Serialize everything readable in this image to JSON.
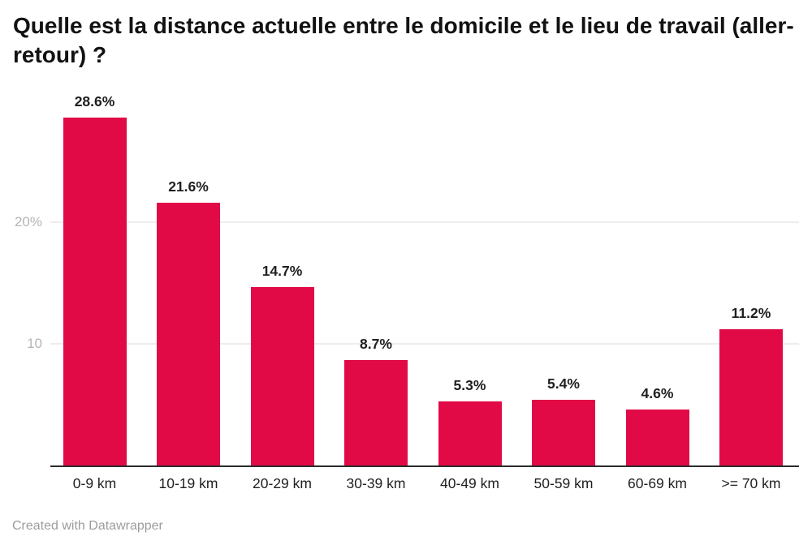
{
  "header": {
    "title": "Quelle est la distance actuelle entre le domicile et le lieu de travail (aller-retour) ?"
  },
  "footer": {
    "attribution": "Created with Datawrapper"
  },
  "colors": {
    "bar": "#e10a46",
    "gridline": "#ededed",
    "axis_line": "#2b2b2b",
    "y_tick_label": "#b5b5b5",
    "value_label": "#1f1f1f",
    "x_tick_label": "#1f1f1f",
    "title": "#121212",
    "footer": "#9c9c9c",
    "background": "#ffffff"
  },
  "chart_data": {
    "type": "bar",
    "title": "Quelle est la distance actuelle entre le domicile et le lieu de travail (aller-retour) ?",
    "categories": [
      "0-9 km",
      "10-19 km",
      "20-29 km",
      "30-39 km",
      "40-49 km",
      "50-59 km",
      "60-69 km",
      ">= 70 km"
    ],
    "values": [
      28.6,
      21.6,
      14.7,
      8.7,
      5.3,
      5.4,
      4.6,
      11.2
    ],
    "value_labels": [
      "28.6%",
      "21.6%",
      "14.7%",
      "8.7%",
      "5.3%",
      "5.4%",
      "4.6%",
      "11.2%"
    ],
    "xlabel": "",
    "ylabel": "",
    "ylim": [
      0,
      30
    ],
    "yticks": [
      {
        "value": 20,
        "label": "20%"
      },
      {
        "value": 10,
        "label": "10"
      }
    ],
    "grid": "horizontal",
    "legend_position": "none",
    "bar_color": "#e10a46"
  }
}
